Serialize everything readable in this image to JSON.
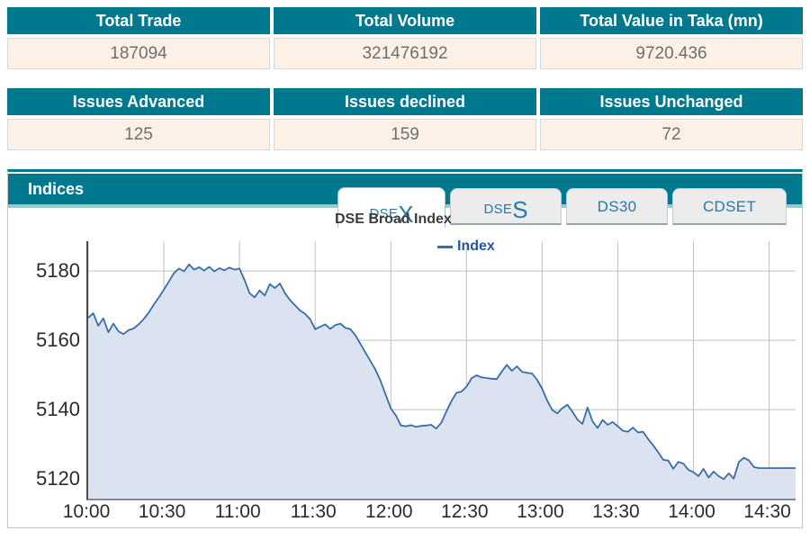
{
  "summary_tables": [
    {
      "headers": [
        "Total Trade",
        "Total Volume",
        "Total Value in Taka (mn)"
      ],
      "values": [
        "187094",
        "321476192",
        "9720.436"
      ]
    },
    {
      "headers": [
        "Issues Advanced",
        "Issues declined",
        "Issues Unchanged"
      ],
      "values": [
        "125",
        "159",
        "72"
      ]
    }
  ],
  "indices_panel": {
    "title": "Indices",
    "tabs": [
      {
        "id": "dsex",
        "prefix": "DSE",
        "suffix": "X",
        "active": true
      },
      {
        "id": "dses",
        "prefix": "DSE",
        "suffix": "S",
        "active": false
      },
      {
        "id": "ds30",
        "prefix": "DS30",
        "suffix": "",
        "active": false
      },
      {
        "id": "cdset",
        "prefix": "CDSET",
        "suffix": "",
        "active": false
      }
    ]
  },
  "colors": {
    "teal_header": "#00798f",
    "teal_strip": "#a3c4cb",
    "row_cream": "#fdf1e7",
    "row_border": "#d8d8d8",
    "value_text": "#6e6e6e",
    "tab_text": "#2e76a8",
    "tab_inactive_bg": "#ececec",
    "tab_active_bg": "#ffffff"
  },
  "chart_data": {
    "type": "area",
    "title": "DSE Broad Index",
    "legend_position": "top-center",
    "grid": true,
    "x_tick_labels": [
      "10:00",
      "10:30",
      "11:00",
      "11:30",
      "12:00",
      "12:30",
      "13:00",
      "13:30",
      "14:00",
      "14:30"
    ],
    "x_tick_minutes": [
      0,
      30,
      60,
      90,
      120,
      150,
      180,
      210,
      240,
      270
    ],
    "x_domain": [
      0,
      280.5
    ],
    "y_ticks": [
      5180,
      5160,
      5140,
      5120
    ],
    "y_domain": [
      5114.3,
      5188.6
    ],
    "colors": {
      "line": "#3a6da6",
      "fill": "#dbe3f0",
      "grid": "#bfbfbf"
    },
    "series": [
      {
        "name": "Index",
        "points": [
          [
            0,
            5166.5
          ],
          [
            2,
            5167.8
          ],
          [
            4,
            5164.2
          ],
          [
            6,
            5166.3
          ],
          [
            8,
            5162.3
          ],
          [
            10,
            5164.8
          ],
          [
            12,
            5162.6
          ],
          [
            14,
            5161.8
          ],
          [
            16,
            5162.9
          ],
          [
            18,
            5163.4
          ],
          [
            20,
            5164.6
          ],
          [
            22,
            5166.1
          ],
          [
            24,
            5168.0
          ],
          [
            26,
            5170.3
          ],
          [
            28,
            5172.4
          ],
          [
            30,
            5174.6
          ],
          [
            32,
            5177.0
          ],
          [
            34,
            5179.4
          ],
          [
            36,
            5180.7
          ],
          [
            38,
            5179.9
          ],
          [
            40,
            5181.9
          ],
          [
            42,
            5180.4
          ],
          [
            44,
            5181.1
          ],
          [
            46,
            5180.1
          ],
          [
            48,
            5181.2
          ],
          [
            50,
            5179.9
          ],
          [
            52,
            5180.8
          ],
          [
            54,
            5180.2
          ],
          [
            56,
            5181.0
          ],
          [
            58,
            5180.4
          ],
          [
            60,
            5180.7
          ],
          [
            62,
            5177.4
          ],
          [
            64,
            5173.6
          ],
          [
            66,
            5172.4
          ],
          [
            68,
            5174.4
          ],
          [
            70,
            5172.9
          ],
          [
            72,
            5176.2
          ],
          [
            74,
            5175.1
          ],
          [
            76,
            5176.4
          ],
          [
            78,
            5173.6
          ],
          [
            80,
            5171.6
          ],
          [
            82,
            5170.1
          ],
          [
            84,
            5168.6
          ],
          [
            86,
            5167.6
          ],
          [
            88,
            5166.1
          ],
          [
            90,
            5163.2
          ],
          [
            92,
            5163.9
          ],
          [
            94,
            5164.6
          ],
          [
            96,
            5163.3
          ],
          [
            98,
            5164.4
          ],
          [
            100,
            5164.8
          ],
          [
            102,
            5163.6
          ],
          [
            104,
            5163.2
          ],
          [
            106,
            5161.4
          ],
          [
            108,
            5158.9
          ],
          [
            110,
            5156.4
          ],
          [
            112,
            5153.9
          ],
          [
            114,
            5151.4
          ],
          [
            116,
            5148.2
          ],
          [
            118,
            5144.2
          ],
          [
            120,
            5140.3
          ],
          [
            122,
            5138.3
          ],
          [
            124,
            5135.4
          ],
          [
            126,
            5135.2
          ],
          [
            128,
            5135.5
          ],
          [
            130,
            5135.0
          ],
          [
            132,
            5135.3
          ],
          [
            134,
            5135.4
          ],
          [
            136,
            5135.6
          ],
          [
            138,
            5134.5
          ],
          [
            140,
            5136.2
          ],
          [
            142,
            5139.4
          ],
          [
            144,
            5142.4
          ],
          [
            146,
            5144.8
          ],
          [
            148,
            5145.2
          ],
          [
            150,
            5146.6
          ],
          [
            152,
            5149.0
          ],
          [
            154,
            5149.9
          ],
          [
            156,
            5149.3
          ],
          [
            158,
            5149.1
          ],
          [
            160,
            5148.9
          ],
          [
            162,
            5148.8
          ],
          [
            164,
            5151.0
          ],
          [
            166,
            5152.9
          ],
          [
            168,
            5151.2
          ],
          [
            170,
            5152.5
          ],
          [
            172,
            5150.9
          ],
          [
            174,
            5150.6
          ],
          [
            176,
            5150.4
          ],
          [
            178,
            5148.6
          ],
          [
            180,
            5146.0
          ],
          [
            182,
            5142.6
          ],
          [
            184,
            5139.9
          ],
          [
            186,
            5138.9
          ],
          [
            188,
            5140.4
          ],
          [
            190,
            5141.4
          ],
          [
            192,
            5139.4
          ],
          [
            194,
            5137.1
          ],
          [
            196,
            5135.9
          ],
          [
            198,
            5140.6
          ],
          [
            200,
            5136.6
          ],
          [
            202,
            5134.7
          ],
          [
            204,
            5137.0
          ],
          [
            206,
            5135.6
          ],
          [
            208,
            5136.4
          ],
          [
            210,
            5135.2
          ],
          [
            212,
            5133.9
          ],
          [
            214,
            5133.6
          ],
          [
            216,
            5134.8
          ],
          [
            218,
            5133.4
          ],
          [
            220,
            5133.6
          ],
          [
            222,
            5131.5
          ],
          [
            224,
            5129.7
          ],
          [
            226,
            5127.7
          ],
          [
            228,
            5125.5
          ],
          [
            230,
            5125.3
          ],
          [
            232,
            5122.9
          ],
          [
            234,
            5124.9
          ],
          [
            236,
            5124.4
          ],
          [
            238,
            5122.6
          ],
          [
            240,
            5121.9
          ],
          [
            242,
            5120.8
          ],
          [
            244,
            5122.9
          ],
          [
            246,
            5120.4
          ],
          [
            248,
            5122.1
          ],
          [
            250,
            5120.8
          ],
          [
            252,
            5119.9
          ],
          [
            254,
            5121.6
          ],
          [
            256,
            5120.1
          ],
          [
            258,
            5124.9
          ],
          [
            260,
            5126.1
          ],
          [
            262,
            5125.3
          ],
          [
            264,
            5123.4
          ],
          [
            266,
            5123.1
          ],
          [
            270,
            5123.1
          ],
          [
            275,
            5123.1
          ],
          [
            280.5,
            5123.1
          ]
        ]
      }
    ]
  }
}
